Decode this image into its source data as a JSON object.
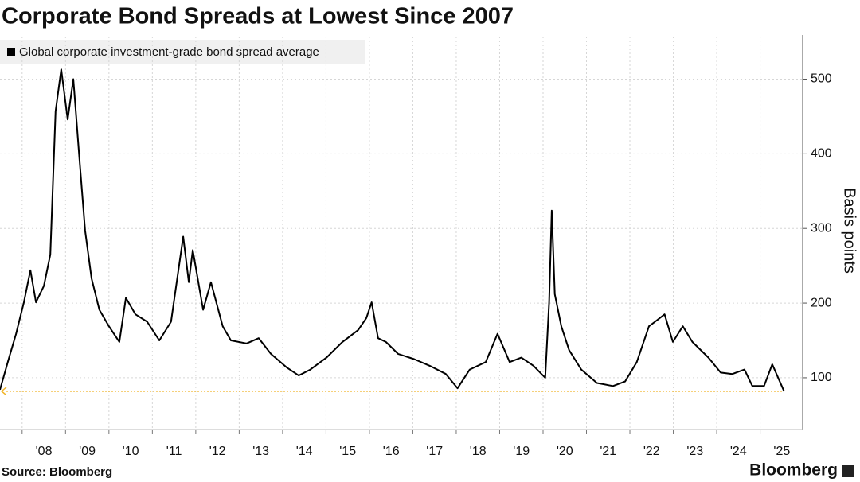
{
  "chart_data": {
    "type": "line",
    "title": "Corporate Bond Spreads at Lowest Since 2007",
    "y_label": "Basis points",
    "source": "Source: Bloomberg",
    "brand": "Bloomberg",
    "xlim": [
      2007.49,
      2025.98
    ],
    "ylim": [
      36,
      557
    ],
    "yticks": [
      100,
      200,
      300,
      400,
      500
    ],
    "xticks": [
      {
        "value": 2008,
        "label": "'08"
      },
      {
        "value": 2009,
        "label": "'09"
      },
      {
        "value": 2010,
        "label": "'10"
      },
      {
        "value": 2011,
        "label": "'11"
      },
      {
        "value": 2012,
        "label": "'12"
      },
      {
        "value": 2013,
        "label": "'13"
      },
      {
        "value": 2014,
        "label": "'14"
      },
      {
        "value": 2015,
        "label": "'15"
      },
      {
        "value": 2016,
        "label": "'16"
      },
      {
        "value": 2017,
        "label": "'17"
      },
      {
        "value": 2018,
        "label": "'18"
      },
      {
        "value": 2019,
        "label": "'19"
      },
      {
        "value": 2020,
        "label": "'20"
      },
      {
        "value": 2021,
        "label": "'21"
      },
      {
        "value": 2022,
        "label": "'22"
      },
      {
        "value": 2023,
        "label": "'23"
      },
      {
        "value": 2024,
        "label": "'24"
      },
      {
        "value": 2025,
        "label": "'25"
      }
    ],
    "grid": true,
    "x": [
      2007.49,
      2007.67,
      2007.86,
      2008.04,
      2008.19,
      2008.32,
      2008.5,
      2008.65,
      2008.77,
      2008.9,
      2009.05,
      2009.18,
      2009.32,
      2009.45,
      2009.6,
      2009.78,
      2010.0,
      2010.24,
      2010.39,
      2010.61,
      2010.88,
      2011.16,
      2011.43,
      2011.71,
      2011.84,
      2011.93,
      2012.17,
      2012.35,
      2012.62,
      2012.81,
      2013.17,
      2013.45,
      2013.73,
      2014.09,
      2014.37,
      2014.64,
      2015.01,
      2015.38,
      2015.74,
      2015.93,
      2016.05,
      2016.2,
      2016.38,
      2016.66,
      2017.03,
      2017.39,
      2017.76,
      2018.03,
      2018.31,
      2018.68,
      2018.95,
      2019.23,
      2019.5,
      2019.78,
      2020.05,
      2020.14,
      2020.2,
      2020.27,
      2020.42,
      2020.6,
      2020.88,
      2021.24,
      2021.61,
      2021.89,
      2022.16,
      2022.44,
      2022.58,
      2022.8,
      2022.99,
      2023.22,
      2023.44,
      2023.81,
      2024.09,
      2024.36,
      2024.64,
      2024.82,
      2025.09,
      2025.28,
      2025.55
    ],
    "series": [
      {
        "name": "Global corporate investment-grade bond spread average",
        "color": "#000000",
        "values": [
          84,
          121,
          159,
          201,
          244,
          201,
          223,
          265,
          457,
          513,
          446,
          500,
          393,
          297,
          233,
          191,
          169,
          148,
          207,
          185,
          175,
          150,
          175,
          289,
          228,
          271,
          191,
          228,
          169,
          150,
          146,
          153,
          132,
          114,
          103,
          111,
          127,
          148,
          164,
          180,
          201,
          153,
          148,
          132,
          125,
          116,
          105,
          86,
          111,
          121,
          159,
          121,
          127,
          116,
          100,
          201,
          324,
          212,
          169,
          137,
          111,
          93,
          89,
          95,
          121,
          169,
          175,
          185,
          148,
          169,
          148,
          127,
          107,
          105,
          111,
          89,
          89,
          118,
          82
        ]
      }
    ],
    "reference_color": "#f0b429"
  }
}
